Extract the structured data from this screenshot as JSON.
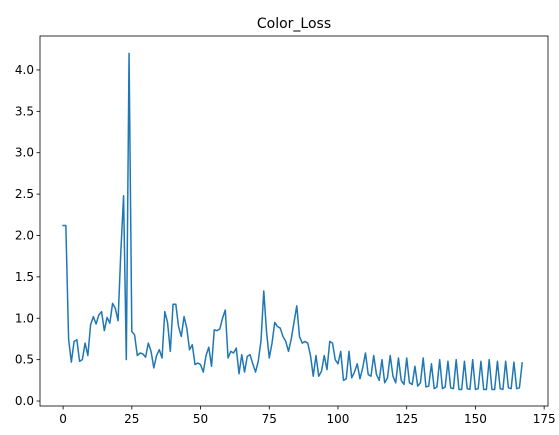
{
  "chart_data": {
    "type": "line",
    "title": "Color_Loss",
    "xlabel": "",
    "ylabel": "",
    "xlim": [
      -8.4,
      176.4
    ],
    "ylim": [
      -0.06,
      4.41
    ],
    "xticks": [
      0,
      25,
      50,
      75,
      100,
      125,
      150,
      175
    ],
    "xtick_labels": [
      "0",
      "25",
      "50",
      "75",
      "100",
      "125",
      "150",
      "175"
    ],
    "yticks": [
      0.0,
      0.5,
      1.0,
      1.5,
      2.0,
      2.5,
      3.0,
      3.5,
      4.0
    ],
    "ytick_labels": [
      "0.0",
      "0.5",
      "1.0",
      "1.5",
      "2.0",
      "2.5",
      "3.0",
      "3.5",
      "4.0"
    ],
    "grid": false,
    "legend": "none",
    "line_color": "#1f77b4",
    "series": [
      {
        "x": [
          0,
          1,
          2,
          3,
          4,
          5,
          6,
          7,
          8,
          9,
          10,
          11,
          12,
          13,
          14,
          15,
          16,
          17,
          18,
          19,
          20,
          21,
          22,
          23,
          24,
          25,
          26,
          27,
          28,
          29,
          30,
          31,
          32,
          33,
          34,
          35,
          36,
          37,
          38,
          39,
          40,
          41,
          42,
          43,
          44,
          45,
          46,
          47,
          48,
          49,
          50,
          51,
          52,
          53,
          54,
          55,
          56,
          57,
          58,
          59,
          60,
          61,
          62,
          63,
          64,
          65,
          66,
          67,
          68,
          69,
          70,
          71,
          72,
          73,
          74,
          75,
          76,
          77,
          78,
          79,
          80,
          81,
          82,
          83,
          84,
          85,
          86,
          87,
          88,
          89,
          90,
          91,
          92,
          93,
          94,
          95,
          96,
          97,
          98,
          99,
          100,
          101,
          102,
          103,
          104,
          105,
          106,
          107,
          108,
          109,
          110,
          111,
          112,
          113,
          114,
          115,
          116,
          117,
          118,
          119,
          120,
          121,
          122,
          123,
          124,
          125,
          126,
          127,
          128,
          129,
          130,
          131,
          132,
          133,
          134,
          135,
          136,
          137,
          138,
          139,
          140,
          141,
          142,
          143,
          144,
          145,
          146,
          147,
          148,
          149,
          150,
          151,
          152,
          153,
          154,
          155,
          156,
          157,
          158,
          159,
          160,
          161,
          162,
          163,
          164,
          165,
          166,
          167
        ],
        "y": [
          2.12,
          2.12,
          0.75,
          0.47,
          0.72,
          0.74,
          0.48,
          0.5,
          0.7,
          0.55,
          0.92,
          1.02,
          0.93,
          1.04,
          1.08,
          0.85,
          1.01,
          0.94,
          1.18,
          1.12,
          0.97,
          1.8,
          2.48,
          0.5,
          4.2,
          0.84,
          0.8,
          0.55,
          0.58,
          0.57,
          0.53,
          0.7,
          0.6,
          0.4,
          0.55,
          0.62,
          0.52,
          1.08,
          0.95,
          0.6,
          1.17,
          1.17,
          0.9,
          0.78,
          1.02,
          0.88,
          0.62,
          0.68,
          0.44,
          0.46,
          0.44,
          0.35,
          0.55,
          0.65,
          0.42,
          0.86,
          0.85,
          0.87,
          1.0,
          1.1,
          0.52,
          0.6,
          0.58,
          0.64,
          0.33,
          0.56,
          0.35,
          0.54,
          0.56,
          0.45,
          0.35,
          0.48,
          0.73,
          1.33,
          0.84,
          0.52,
          0.7,
          0.95,
          0.9,
          0.88,
          0.78,
          0.72,
          0.6,
          0.75,
          0.95,
          1.15,
          0.78,
          0.7,
          0.72,
          0.7,
          0.55,
          0.3,
          0.55,
          0.3,
          0.36,
          0.55,
          0.38,
          0.72,
          0.7,
          0.5,
          0.45,
          0.6,
          0.25,
          0.27,
          0.6,
          0.28,
          0.35,
          0.45,
          0.27,
          0.4,
          0.58,
          0.32,
          0.3,
          0.55,
          0.32,
          0.25,
          0.5,
          0.22,
          0.28,
          0.55,
          0.3,
          0.22,
          0.52,
          0.25,
          0.2,
          0.52,
          0.22,
          0.2,
          0.42,
          0.18,
          0.22,
          0.52,
          0.17,
          0.18,
          0.45,
          0.15,
          0.17,
          0.5,
          0.15,
          0.17,
          0.48,
          0.16,
          0.15,
          0.5,
          0.14,
          0.14,
          0.48,
          0.15,
          0.14,
          0.5,
          0.14,
          0.15,
          0.48,
          0.14,
          0.14,
          0.5,
          0.14,
          0.14,
          0.48,
          0.15,
          0.14,
          0.48,
          0.16,
          0.15,
          0.47,
          0.15,
          0.16,
          0.46
        ]
      }
    ]
  }
}
